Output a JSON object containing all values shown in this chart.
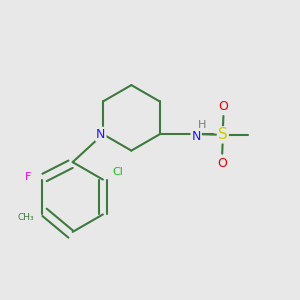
{
  "background_color": "#e8e8e8",
  "bond_color": "#3d7a3d",
  "bond_width": 1.5,
  "colors": {
    "N": "#1a1aff",
    "H": "#7a7a7a",
    "F": "#ee00ee",
    "Cl": "#22bb22",
    "S": "#cccc00",
    "O": "#ee0000",
    "C": "#3d7a3d"
  },
  "figsize": [
    3.0,
    3.0
  ],
  "dpi": 100,
  "xlim": [
    0.0,
    1.0
  ],
  "ylim": [
    0.0,
    1.0
  ]
}
